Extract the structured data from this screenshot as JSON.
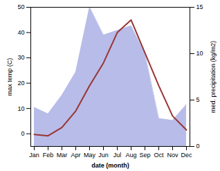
{
  "chart_data": {
    "type": "line",
    "categories": [
      "Jan",
      "Feb",
      "Mar",
      "Apr",
      "May",
      "Jun",
      "Jul",
      "Aug",
      "Sep",
      "Oct",
      "Nov",
      "Dec"
    ],
    "series": [
      {
        "type": "area",
        "axis": "y2",
        "color": "#b8bce8",
        "values": [
          4.2,
          3.5,
          5.5,
          8.0,
          15.0,
          12.0,
          12.5,
          13.0,
          10.0,
          3.0,
          2.8,
          4.5
        ]
      },
      {
        "type": "line",
        "color": "#993333",
        "values": [
          -0.3,
          -0.8,
          2.5,
          9.0,
          19.0,
          28.0,
          40.0,
          45.0,
          32.0,
          19.0,
          7.0,
          1.5
        ]
      }
    ],
    "xlabel": "date (month)",
    "ylabel": "max temp (C)",
    "y2label": "med. precipitation (kg/m2)",
    "ylim": [
      -5,
      50
    ],
    "yticks": [
      0,
      10,
      20,
      30,
      40,
      50
    ],
    "y2lim": [
      0,
      15
    ],
    "y2ticks": [
      0,
      5,
      10,
      15
    ]
  }
}
